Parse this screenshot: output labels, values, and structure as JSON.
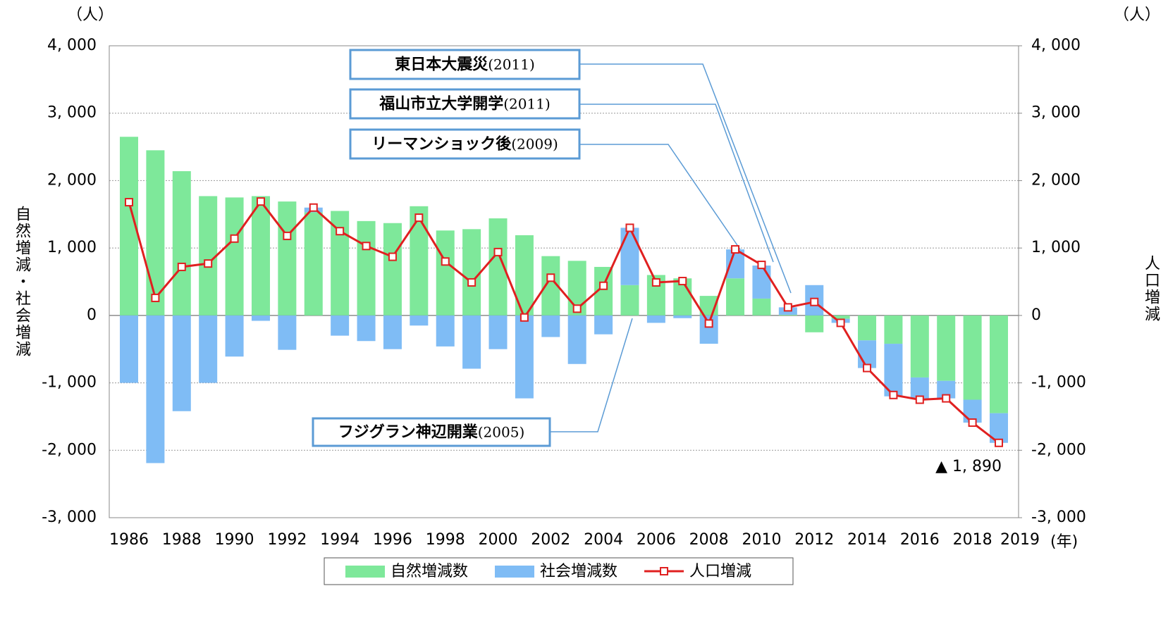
{
  "chart_data": {
    "type": "bar",
    "stacked": true,
    "categories": [
      "1986",
      null,
      "1988",
      null,
      "1990",
      null,
      "1992",
      null,
      "1994",
      null,
      "1996",
      null,
      "1998",
      null,
      "2000",
      null,
      "2002",
      null,
      "2004",
      null,
      "2006",
      null,
      "2008",
      null,
      "2010",
      null,
      "2012",
      null,
      "2014",
      null,
      "2016",
      null,
      "2018",
      "2019"
    ],
    "series": [
      {
        "name": "自然増減数",
        "color": "#7ee89a",
        "values": [
          2650,
          2450,
          2140,
          1770,
          1750,
          1770,
          1690,
          1530,
          1550,
          1400,
          1370,
          1620,
          1260,
          1280,
          1440,
          1190,
          880,
          810,
          720,
          450,
          600,
          550,
          290,
          550,
          250,
          10,
          -250,
          -50,
          -370,
          -420,
          -920,
          -970,
          -1250,
          -1450
        ]
      },
      {
        "name": "社会増減数",
        "color": "#7fbcf5",
        "values": [
          -1000,
          -2190,
          -1420,
          -1000,
          -610,
          -80,
          -510,
          70,
          -300,
          -380,
          -500,
          -150,
          -460,
          -790,
          -500,
          -1230,
          -320,
          -720,
          -280,
          850,
          -110,
          -40,
          -420,
          430,
          490,
          110,
          450,
          -60,
          -410,
          -780,
          -310,
          -260,
          -340,
          -440
        ]
      },
      {
        "name": "人口増減",
        "type": "line",
        "axis": "y2",
        "color": "#e02020",
        "values": [
          1680,
          260,
          720,
          770,
          1140,
          1690,
          1180,
          1600,
          1250,
          1030,
          870,
          1450,
          800,
          490,
          940,
          -30,
          560,
          100,
          440,
          1300,
          490,
          510,
          -120,
          980,
          750,
          120,
          200,
          -110,
          -780,
          -1180,
          -1250,
          -1230,
          -1590,
          -1890
        ]
      }
    ],
    "ylim": [
      -3000,
      4000
    ],
    "yticks": [
      {
        "value": -3000,
        "label": "-3, 000"
      },
      {
        "value": -2000,
        "label": "-2, 000"
      },
      {
        "value": -1000,
        "label": "-1, 000"
      },
      0,
      {
        "value": 1000,
        "label": "1, 000"
      },
      {
        "value": 2000,
        "label": "2, 000"
      },
      {
        "value": 3000,
        "label": "3, 000"
      },
      {
        "value": 4000,
        "label": "4, 000"
      }
    ],
    "y2lim": [
      -3000,
      4000
    ],
    "y2ticks": [
      {
        "value": -3000,
        "label": "-3, 000"
      },
      {
        "value": -2000,
        "label": "-2, 000"
      },
      {
        "value": -1000,
        "label": "-1, 000"
      },
      0,
      {
        "value": 1000,
        "label": "1, 000"
      },
      {
        "value": 2000,
        "label": "2, 000"
      },
      {
        "value": 3000,
        "label": "3, 000"
      },
      {
        "value": 4000,
        "label": "4, 000"
      }
    ],
    "y_unit": "（人）",
    "y2_unit": "（人）",
    "x_unit": "(年)",
    "ylabel": "自然増減・社会増減",
    "y2label": "人口増減",
    "grid": true,
    "legend": "bottom",
    "end_label": "▲ 1, 890",
    "annotations": [
      {
        "label": "東日本大震災",
        "year": "(2011)"
      },
      {
        "label": "福山市立大学開学",
        "year": "(2011)"
      },
      {
        "label": "リーマンショック後",
        "year": "(2009)"
      },
      {
        "label": "フジグラン神辺開業",
        "year": "(2005)"
      }
    ]
  }
}
